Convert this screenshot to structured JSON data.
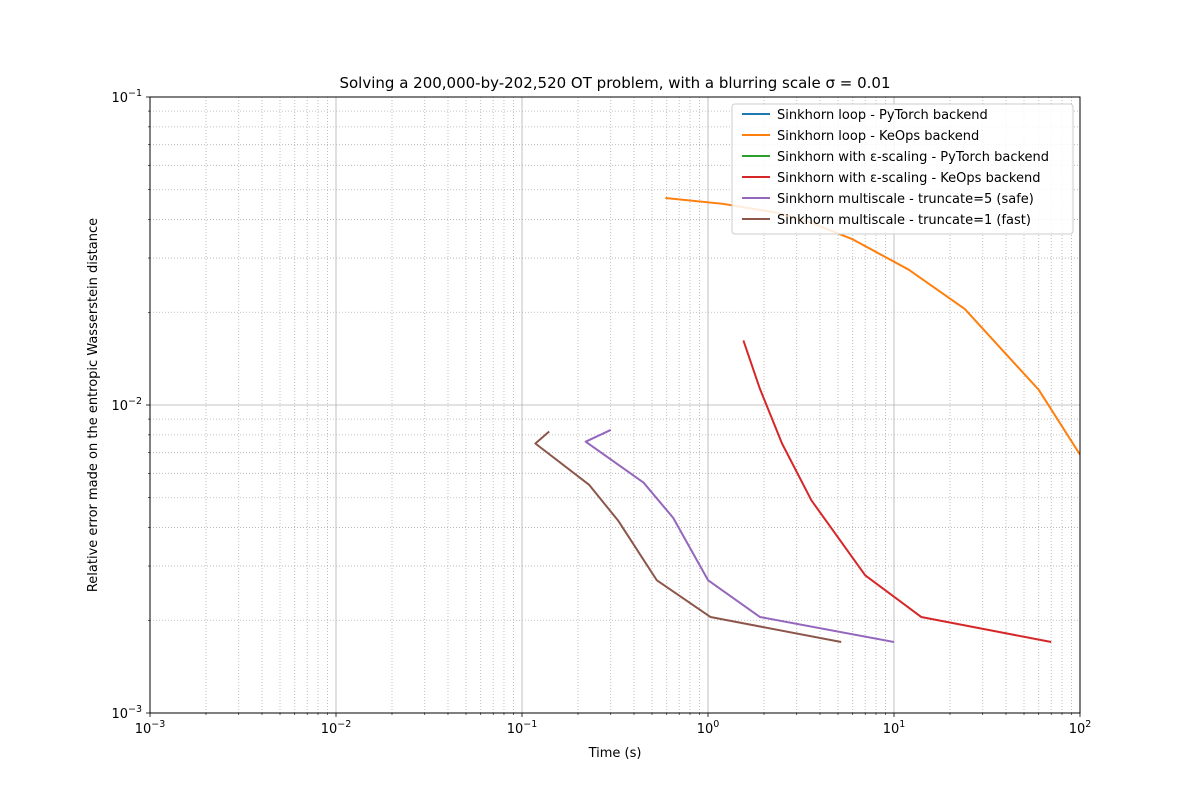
{
  "chart_data": {
    "type": "line",
    "title": "Solving a 200,000-by-202,520 OT problem, with a blurring scale σ = 0.01",
    "xlabel": "Time (s)",
    "ylabel": "Relative error made on the entropic Wasserstein distance",
    "x_scale": "log",
    "y_scale": "log",
    "xlim": [
      0.001,
      100
    ],
    "ylim": [
      0.001,
      0.1
    ],
    "grid": true,
    "legend_position": "top-right",
    "x_ticks": [
      {
        "value": 0.001,
        "base": "10",
        "exp": "−3"
      },
      {
        "value": 0.01,
        "base": "10",
        "exp": "−2"
      },
      {
        "value": 0.1,
        "base": "10",
        "exp": "−1"
      },
      {
        "value": 1,
        "base": "10",
        "exp": "0"
      },
      {
        "value": 10,
        "base": "10",
        "exp": "1"
      },
      {
        "value": 100,
        "base": "10",
        "exp": "2"
      }
    ],
    "y_ticks": [
      {
        "value": 0.001,
        "base": "10",
        "exp": "−3"
      },
      {
        "value": 0.01,
        "base": "10",
        "exp": "−2"
      },
      {
        "value": 0.1,
        "base": "10",
        "exp": "−1"
      }
    ],
    "series": [
      {
        "name": "Sinkhorn loop - PyTorch backend",
        "color": "#1f77b4",
        "x": [],
        "y": []
      },
      {
        "name": "Sinkhorn loop - KeOps backend",
        "color": "#ff7f0e",
        "x": [
          0.59,
          1.2,
          2.4,
          3.6,
          6.0,
          12.0,
          24.0,
          60.0,
          100.0
        ],
        "y": [
          0.047,
          0.045,
          0.042,
          0.039,
          0.0345,
          0.0275,
          0.0205,
          0.0112,
          0.0069
        ]
      },
      {
        "name": "Sinkhorn with ε-scaling - PyTorch backend",
        "color": "#2ca02c",
        "x": [],
        "y": []
      },
      {
        "name": "Sinkhorn with ε-scaling - KeOps backend",
        "color": "#d62728",
        "x": [
          1.55,
          1.9,
          2.5,
          3.6,
          7.0,
          14.0,
          70.0
        ],
        "y": [
          0.0162,
          0.0113,
          0.0075,
          0.0049,
          0.0028,
          0.00205,
          0.0017
        ]
      },
      {
        "name": "Sinkhorn multiscale - truncate=5 (safe)",
        "color": "#9467bd",
        "x": [
          0.3,
          0.22,
          0.45,
          0.65,
          1.0,
          1.9,
          10.0
        ],
        "y": [
          0.0083,
          0.0076,
          0.0056,
          0.0043,
          0.0027,
          0.00205,
          0.0017
        ]
      },
      {
        "name": "Sinkhorn multiscale - truncate=1 (fast)",
        "color": "#8c564b",
        "x": [
          0.14,
          0.118,
          0.23,
          0.33,
          0.53,
          1.03,
          5.2
        ],
        "y": [
          0.0082,
          0.0075,
          0.0055,
          0.0042,
          0.0027,
          0.00205,
          0.0017
        ]
      }
    ]
  }
}
